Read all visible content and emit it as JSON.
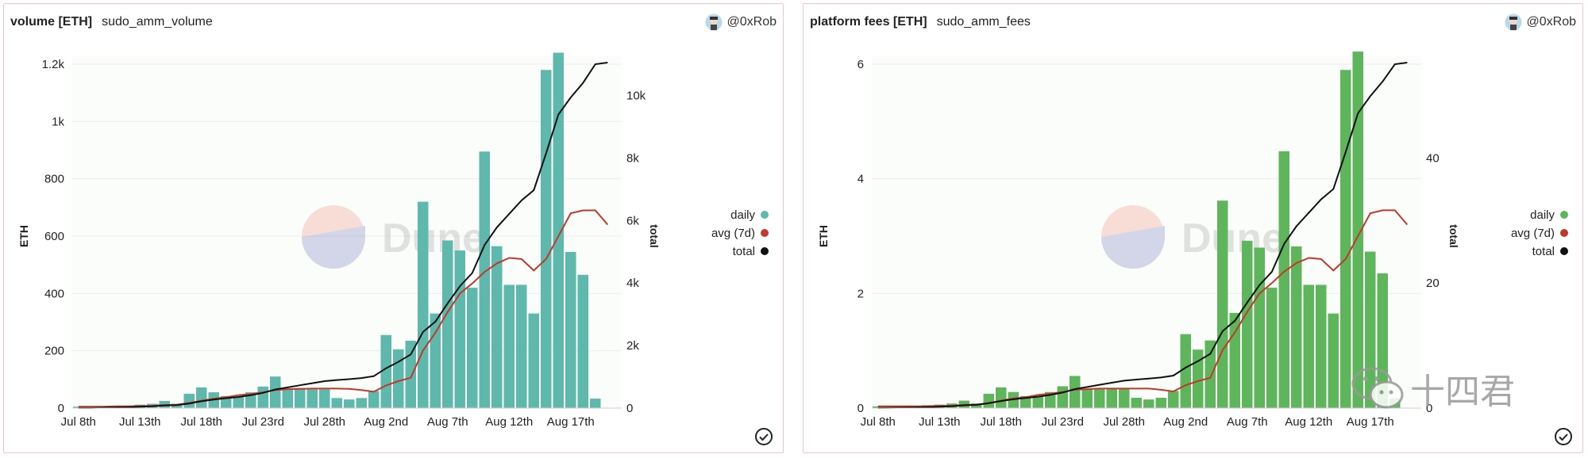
{
  "dates": [
    "Jul 8",
    "Jul 9",
    "Jul 10",
    "Jul 11",
    "Jul 12",
    "Jul 13",
    "Jul 14",
    "Jul 15",
    "Jul 16",
    "Jul 17",
    "Jul 18",
    "Jul 19",
    "Jul 20",
    "Jul 21",
    "Jul 22",
    "Jul 23",
    "Jul 24",
    "Jul 25",
    "Jul 26",
    "Jul 27",
    "Jul 28",
    "Jul 29",
    "Jul 30",
    "Jul 31",
    "Aug 1",
    "Aug 2",
    "Aug 3",
    "Aug 4",
    "Aug 5",
    "Aug 6",
    "Aug 7",
    "Aug 8",
    "Aug 9",
    "Aug 10",
    "Aug 11",
    "Aug 12",
    "Aug 13",
    "Aug 14",
    "Aug 15",
    "Aug 16",
    "Aug 17",
    "Aug 18",
    "Aug 19",
    "Aug 20"
  ],
  "panels": [
    {
      "title": "volume [ETH]",
      "query": "sudo_amm_volume",
      "author": "@0xRob",
      "watermark": "Dune",
      "chart_data": {
        "type": "bar",
        "bar_color": "#5fb8ac",
        "xticks": [
          "Jul 8th",
          "Jul 13th",
          "Jul 18th",
          "Jul 23rd",
          "Jul 28th",
          "Aug 2nd",
          "Aug 7th",
          "Aug 12th",
          "Aug 17th"
        ],
        "ylabel": "ETH",
        "y2label": "total",
        "ylim": [
          0,
          1200
        ],
        "yticks": [
          0,
          200,
          400,
          600,
          800,
          1000,
          1200
        ],
        "ytick_labels": [
          "0",
          "200",
          "400",
          "600",
          "800",
          "1k",
          "1.2k"
        ],
        "y2lim": [
          0,
          11000
        ],
        "y2ticks": [
          0,
          2000,
          4000,
          6000,
          8000,
          10000
        ],
        "y2tick_labels": [
          "0",
          "2k",
          "4k",
          "6k",
          "8k",
          "10k"
        ],
        "series": [
          {
            "name": "daily",
            "color": "#5fb8ac",
            "values": [
              5,
              3,
              6,
              8,
              8,
              12,
              15,
              25,
              15,
              50,
              72,
              55,
              42,
              40,
              55,
              75,
              110,
              65,
              70,
              65,
              65,
              35,
              30,
              35,
              60,
              255,
              205,
              235,
              720,
              330,
              585,
              550,
              420,
              895,
              565,
              430,
              430,
              330,
              1180,
              1240,
              545,
              465,
              33,
              0
            ]
          },
          {
            "name": "avg (7d)",
            "color": "#c0392b",
            "values": [
              5,
              5,
              5,
              6,
              6,
              7,
              8,
              11,
              12,
              18,
              26,
              33,
              38,
              45,
              49,
              55,
              63,
              66,
              67,
              68,
              68,
              68,
              67,
              63,
              57,
              79,
              94,
              106,
              201,
              263,
              335,
              400,
              435,
              475,
              505,
              524,
              520,
              480,
              520,
              600,
              680,
              690,
              690,
              640
            ]
          },
          {
            "name": "total",
            "color": "#111111",
            "values": [
              5,
              8,
              14,
              22,
              30,
              42,
              57,
              82,
              97,
              147,
              219,
              274,
              316,
              356,
              411,
              486,
              596,
              661,
              731,
              796,
              861,
              896,
              926,
              961,
              1021,
              1276,
              1481,
              1716,
              2436,
              2766,
              3351,
              3901,
              4321,
              5216,
              5781,
              6211,
              6641,
              6971,
              8151,
              9391,
              9936,
              10401,
              11000,
              11050
            ]
          }
        ]
      }
    },
    {
      "title": "platform fees [ETH]",
      "query": "sudo_amm_fees",
      "author": "@0xRob",
      "watermark": "Dune",
      "chart_data": {
        "type": "bar",
        "bar_color": "#5fb55c",
        "xticks": [
          "Jul 8th",
          "Jul 13th",
          "Jul 18th",
          "Jul 23rd",
          "Jul 28th",
          "Aug 2nd",
          "Aug 7th",
          "Aug 12th",
          "Aug 17th"
        ],
        "ylabel": "ETH",
        "y2label": "total",
        "ylim": [
          0,
          6
        ],
        "yticks": [
          0,
          2,
          4,
          6
        ],
        "ytick_labels": [
          "0",
          "2",
          "4",
          "6"
        ],
        "y2lim": [
          0,
          55
        ],
        "y2ticks": [
          0,
          20,
          40
        ],
        "y2tick_labels": [
          "0",
          "20",
          "40"
        ],
        "series": [
          {
            "name": "daily",
            "color": "#5fb55c",
            "values": [
              0.03,
              0.02,
              0.03,
              0.04,
              0.05,
              0.06,
              0.08,
              0.13,
              0.08,
              0.25,
              0.36,
              0.28,
              0.21,
              0.2,
              0.28,
              0.38,
              0.56,
              0.33,
              0.35,
              0.33,
              0.33,
              0.18,
              0.15,
              0.18,
              0.3,
              1.29,
              1.02,
              1.18,
              3.62,
              1.66,
              2.92,
              2.8,
              2.1,
              4.48,
              2.82,
              2.15,
              2.15,
              1.65,
              5.9,
              6.22,
              2.73,
              2.35,
              0.17,
              0
            ]
          },
          {
            "name": "avg (7d)",
            "color": "#c0392b",
            "values": [
              0.03,
              0.03,
              0.03,
              0.03,
              0.03,
              0.04,
              0.04,
              0.06,
              0.06,
              0.09,
              0.13,
              0.17,
              0.19,
              0.23,
              0.25,
              0.28,
              0.32,
              0.33,
              0.34,
              0.34,
              0.34,
              0.34,
              0.34,
              0.32,
              0.29,
              0.4,
              0.47,
              0.53,
              1.01,
              1.32,
              1.68,
              2.0,
              2.18,
              2.38,
              2.53,
              2.62,
              2.6,
              2.4,
              2.6,
              3.0,
              3.4,
              3.45,
              3.45,
              3.2
            ]
          },
          {
            "name": "total",
            "color": "#111111",
            "values": [
              0.03,
              0.05,
              0.08,
              0.12,
              0.17,
              0.23,
              0.31,
              0.44,
              0.52,
              0.77,
              1.13,
              1.41,
              1.62,
              1.82,
              2.1,
              2.48,
              3.04,
              3.37,
              3.72,
              4.05,
              4.38,
              4.56,
              4.71,
              4.89,
              5.19,
              6.48,
              7.5,
              8.68,
              12.3,
              13.96,
              16.88,
              19.68,
              21.78,
              26.26,
              29.08,
              31.23,
              33.38,
              35.03,
              40.93,
              47.15,
              49.88,
              52.23,
              55.0,
              55.25
            ]
          }
        ]
      }
    }
  ],
  "overlay_watermark": "十四君"
}
